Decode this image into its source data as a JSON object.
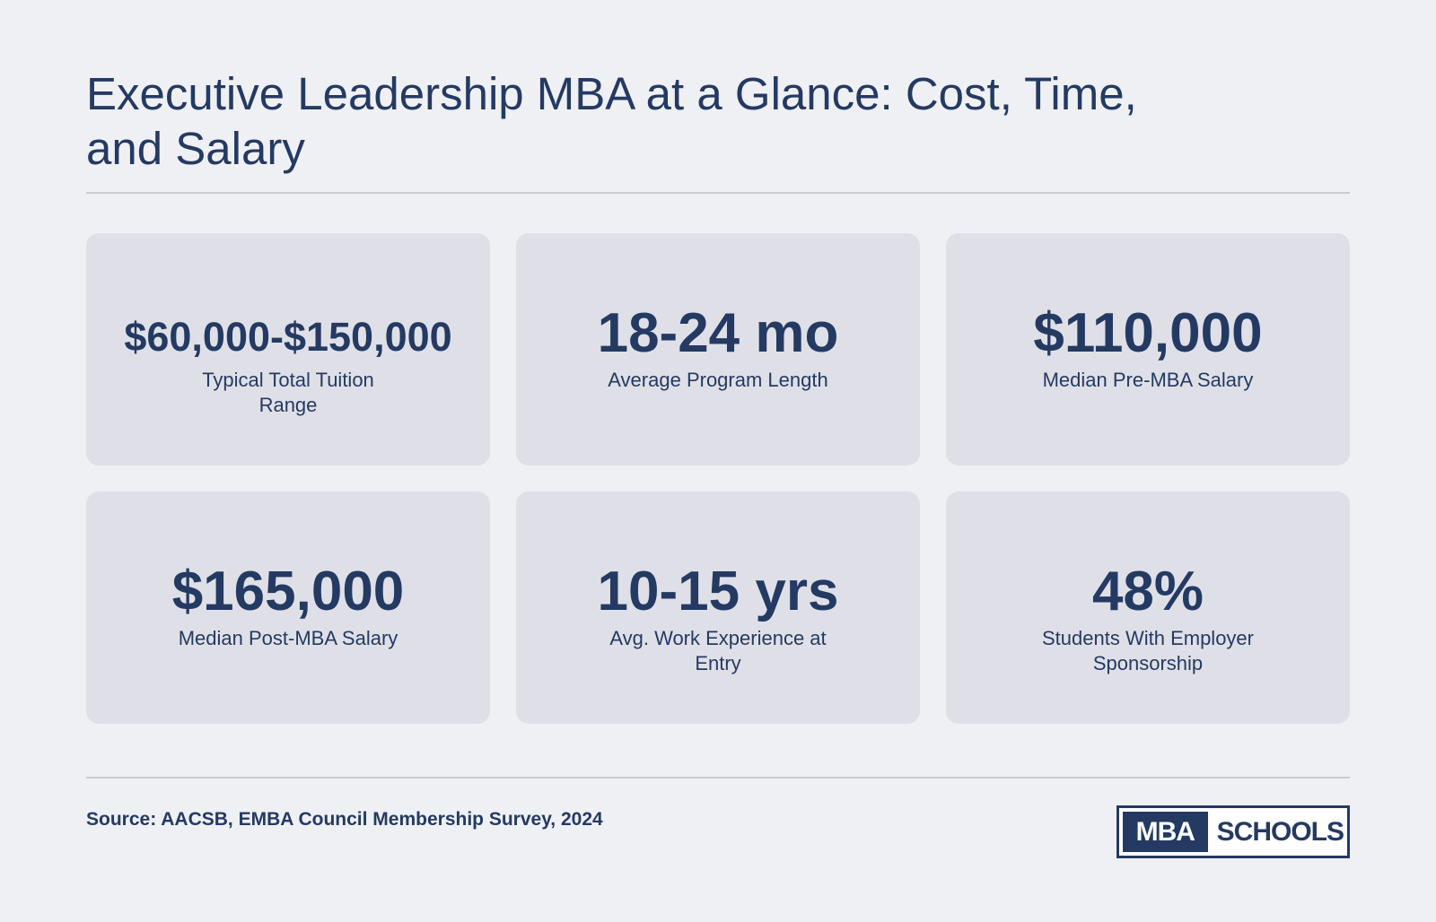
{
  "title": "Executive Leadership MBA at a Glance: Cost, Time, and Salary",
  "stats": [
    {
      "value": "$60,000-$150,000",
      "label": "Typical Total Tuition Range"
    },
    {
      "value": "18-24 mo",
      "label": "Average Program Length"
    },
    {
      "value": "$110,000",
      "label": "Median Pre-MBA Salary"
    },
    {
      "value": "$165,000",
      "label": "Median Post-MBA Salary"
    },
    {
      "value": "10-15 yrs",
      "label": "Avg. Work Experience at Entry"
    },
    {
      "value": "48%",
      "label": "Students With Employer Sponsorship"
    }
  ],
  "footer": {
    "source": "Source: AACSB, EMBA Council Membership Survey, 2024",
    "logo_left": "MBA",
    "logo_right": "SCHOOLS"
  },
  "colors": {
    "background": "#eff0f4",
    "card": "#dfe0e7",
    "text": "#243a63",
    "rule": "#c9ccd2"
  }
}
